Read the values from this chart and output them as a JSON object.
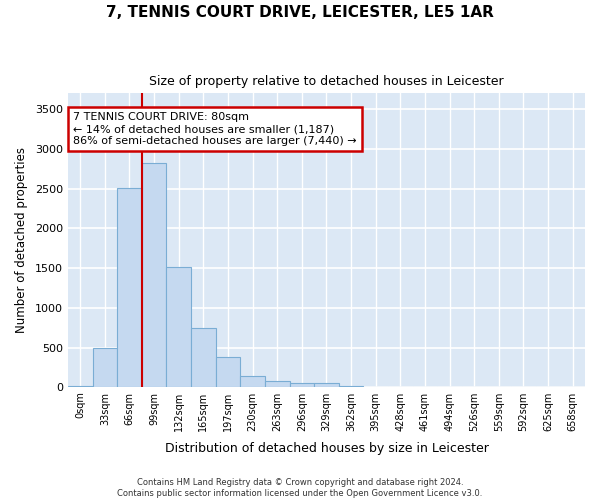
{
  "title": "7, TENNIS COURT DRIVE, LEICESTER, LE5 1AR",
  "subtitle": "Size of property relative to detached houses in Leicester",
  "xlabel": "Distribution of detached houses by size in Leicester",
  "ylabel": "Number of detached properties",
  "bar_color": "#c5d9f0",
  "bar_edge_color": "#7aadd4",
  "background_color": "#dce8f5",
  "fig_background_color": "#ffffff",
  "grid_color": "#ffffff",
  "annotation_line_color": "#cc0000",
  "annotation_box_edgecolor": "#cc0000",
  "bin_labels": [
    "0sqm",
    "33sqm",
    "66sqm",
    "99sqm",
    "132sqm",
    "165sqm",
    "197sqm",
    "230sqm",
    "263sqm",
    "296sqm",
    "329sqm",
    "362sqm",
    "395sqm",
    "428sqm",
    "461sqm",
    "494sqm",
    "526sqm",
    "559sqm",
    "592sqm",
    "625sqm",
    "658sqm"
  ],
  "bar_values": [
    20,
    490,
    2510,
    2820,
    1520,
    750,
    385,
    140,
    75,
    55,
    55,
    20,
    0,
    0,
    0,
    0,
    0,
    0,
    0,
    0,
    0
  ],
  "property_bin_index": 2,
  "annotation_title": "7 TENNIS COURT DRIVE: 80sqm",
  "annotation_line1": "← 14% of detached houses are smaller (1,187)",
  "annotation_line2": "86% of semi-detached houses are larger (7,440) →",
  "footer_line1": "Contains HM Land Registry data © Crown copyright and database right 2024.",
  "footer_line2": "Contains public sector information licensed under the Open Government Licence v3.0.",
  "ylim_max": 3700,
  "yticks": [
    0,
    500,
    1000,
    1500,
    2000,
    2500,
    3000,
    3500
  ],
  "num_bins": 21
}
